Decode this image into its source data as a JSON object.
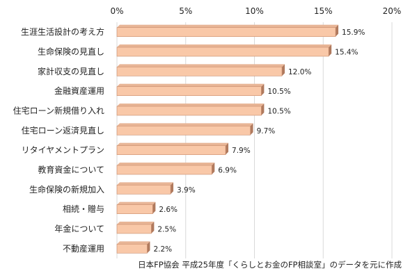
{
  "chart_data": {
    "type": "bar",
    "orientation": "horizontal",
    "categories": [
      "生涯生活設計の考え方",
      "生命保険の見直し",
      "家計収支の見直し",
      "金融資産運用",
      "住宅ローン新規借り入れ",
      "住宅ローン返済見直し",
      "リタイヤメントプラン",
      "教育資金について",
      "生命保険の新規加入",
      "相続・贈与",
      "年金について",
      "不動産運用"
    ],
    "values": [
      15.9,
      15.4,
      12.0,
      10.5,
      10.5,
      9.7,
      7.9,
      6.9,
      3.9,
      2.6,
      2.5,
      2.2
    ],
    "value_labels": [
      "15.9%",
      "15.4%",
      "12.0%",
      "10.5%",
      "10.5%",
      "9.7%",
      "7.9%",
      "6.9%",
      "3.9%",
      "2.6%",
      "2.5%",
      "2.2%"
    ],
    "xlim": [
      0,
      20
    ],
    "x_ticks": [
      0,
      5,
      10,
      15,
      20
    ],
    "x_tick_labels": [
      "0%",
      "5%",
      "10%",
      "15%",
      "20%"
    ],
    "x_axis_position": "top",
    "grid": true,
    "legend": "none",
    "title": "",
    "xlabel": "",
    "ylabel": "",
    "colors": {
      "bar": "#f9c8a8",
      "bar_edge": "#c98c6c",
      "bar_shadow": "#b07a5e",
      "grid": "#d9d9d9"
    }
  },
  "footnote": "日本FP協会 平成25年度「くらしとお金のFP相談室」のデータを元に作成"
}
